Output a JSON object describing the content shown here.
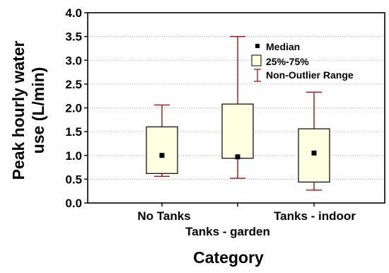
{
  "chart_data": {
    "type": "box",
    "ylabel": "Peak hourly water use (L/min)",
    "ylabel_lines": [
      "Peak hourly water",
      "use (L/min)"
    ],
    "xlabel": "Category",
    "ylim": [
      0.0,
      4.0
    ],
    "yticks": [
      "0.0",
      "0.5",
      "1.0",
      "1.5",
      "2.0",
      "2.5",
      "3.0",
      "3.5",
      "4.0"
    ],
    "grid": true,
    "legend_position": "top-right",
    "categories": [
      "No Tanks",
      "Tanks - garden",
      "Tanks - indoor"
    ],
    "boxes": [
      {
        "category": "No Tanks",
        "median": 1.0,
        "q1": 0.62,
        "q3": 1.6,
        "min": 0.56,
        "max": 2.06
      },
      {
        "category": "Tanks - garden",
        "median": 0.97,
        "q1": 0.94,
        "q3": 2.08,
        "min": 0.52,
        "max": 3.5
      },
      {
        "category": "Tanks - indoor",
        "median": 1.05,
        "q1": 0.44,
        "q3": 1.56,
        "min": 0.27,
        "max": 2.33
      }
    ],
    "legend": {
      "median": "Median",
      "box": "25%-75%",
      "whisker": "Non-Outlier Range"
    },
    "colors": {
      "box_fill": "#ffffe1",
      "box_stroke": "#000000",
      "whisker": "#8b1a1a",
      "median": "#000000",
      "grid": "#a8a8a8"
    }
  }
}
